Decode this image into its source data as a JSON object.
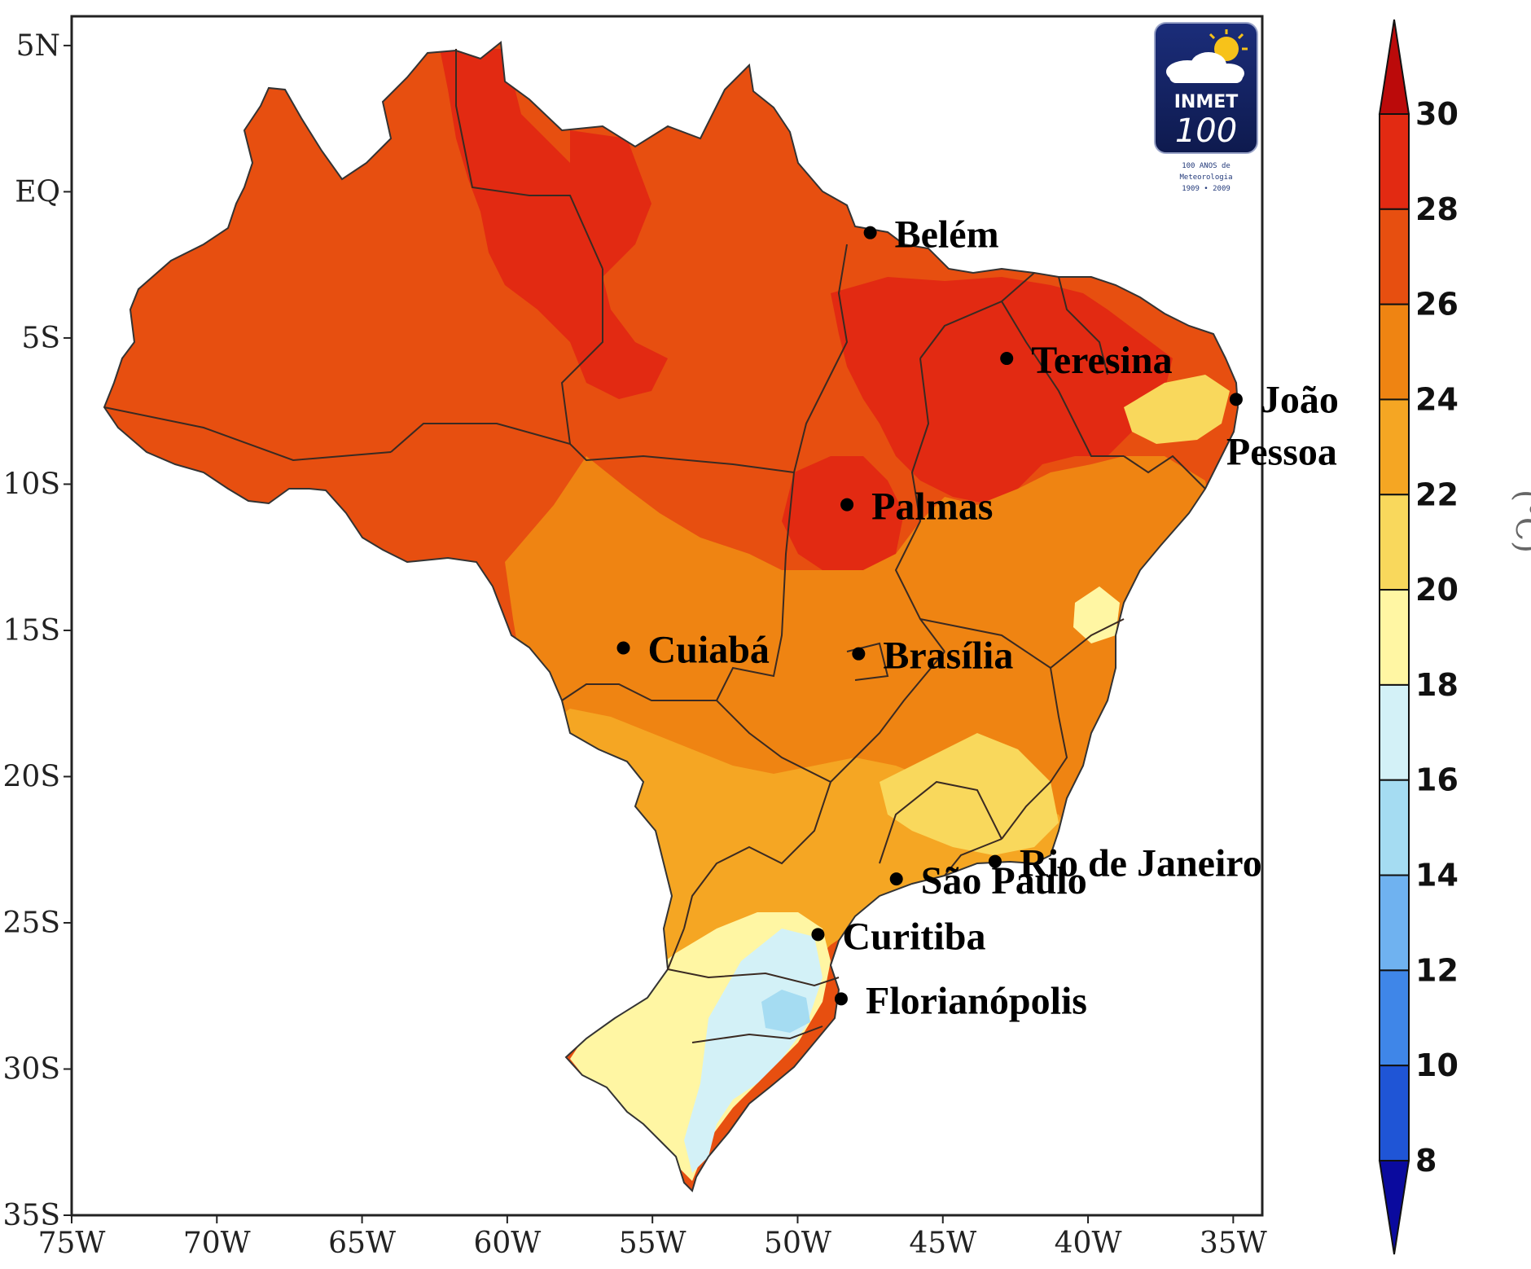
{
  "map": {
    "lon_range": [
      -75,
      -34
    ],
    "lat_range": [
      -35,
      6
    ],
    "x_ticks": [
      {
        "lon": -75,
        "label": "75W"
      },
      {
        "lon": -70,
        "label": "70W"
      },
      {
        "lon": -65,
        "label": "65W"
      },
      {
        "lon": -60,
        "label": "60W"
      },
      {
        "lon": -55,
        "label": "55W"
      },
      {
        "lon": -50,
        "label": "50W"
      },
      {
        "lon": -45,
        "label": "45W"
      },
      {
        "lon": -40,
        "label": "40W"
      },
      {
        "lon": -35,
        "label": "35W"
      }
    ],
    "y_ticks": [
      {
        "lat": 5,
        "label": "5N"
      },
      {
        "lat": 0,
        "label": "EQ"
      },
      {
        "lat": -5,
        "label": "5S"
      },
      {
        "lat": -10,
        "label": "10S"
      },
      {
        "lat": -15,
        "label": "15S"
      },
      {
        "lat": -20,
        "label": "20S"
      },
      {
        "lat": -25,
        "label": "25S"
      },
      {
        "lat": -30,
        "label": "30S"
      },
      {
        "lat": -35,
        "label": "35S"
      }
    ],
    "cities": [
      {
        "name": "Belém",
        "lon": -47.5,
        "lat": -1.4
      },
      {
        "name": "Teresina",
        "lon": -42.8,
        "lat": -5.7
      },
      {
        "name": "João",
        "name2": "Pessoa",
        "lon": -34.9,
        "lat": -7.1
      },
      {
        "name": "Palmas",
        "lon": -48.3,
        "lat": -10.7
      },
      {
        "name": "Cuiabá",
        "lon": -56.0,
        "lat": -15.6
      },
      {
        "name": "Brasília",
        "lon": -47.9,
        "lat": -15.8
      },
      {
        "name": "Rio de Janeiro",
        "lon": -43.2,
        "lat": -22.9
      },
      {
        "name": "São Paulo",
        "lon": -46.6,
        "lat": -23.5
      },
      {
        "name": "Curitiba",
        "lon": -49.3,
        "lat": -25.4
      },
      {
        "name": "Florianópolis",
        "lon": -48.5,
        "lat": -27.6
      }
    ]
  },
  "colorbar": {
    "unit": "(°C)",
    "levels": [
      8,
      10,
      12,
      14,
      16,
      18,
      20,
      22,
      24,
      26,
      28,
      30
    ],
    "colors": [
      "#0c2fae",
      "#1f55d6",
      "#3f86e8",
      "#6fb2f0",
      "#a5dcf2",
      "#d3f1f7",
      "#fff6a3",
      "#f9d85c",
      "#f5a623",
      "#ef8412",
      "#e74f10",
      "#e22a12",
      "#c80f0f"
    ],
    "under_color": "#0a0a9e",
    "over_color": "#bb0a0a"
  },
  "logo": {
    "brand": "INMET",
    "number": "100",
    "line1": "100 ANOS de",
    "line2": "Meteorologia",
    "line3": "1909 • 2009"
  }
}
